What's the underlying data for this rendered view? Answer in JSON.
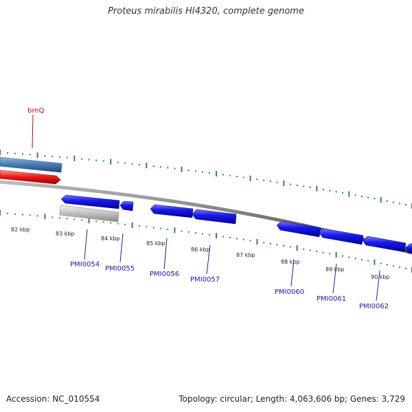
{
  "title": "Proteus mirabilis HI4320, complete genome",
  "footer": {
    "accession": "Accession: NC_010554",
    "summary": "Topology: circular; Length: 4,063,606 bp; Genes: 3,729"
  },
  "colors": {
    "forward_gene": "#4a7fb5",
    "rna_gene": "#e8161c",
    "reverse_gene": "#1414e6",
    "pseudo_gene": "#bdbdbd",
    "backbone": "#808080",
    "ticks": "#2e8b2e",
    "label_blue": "#1a1aa8",
    "label_red": "#cc0000"
  },
  "ticks": [
    {
      "label": "82 kbp"
    },
    {
      "label": "83 kbp"
    },
    {
      "label": "84 kbp"
    },
    {
      "label": "85 kbp"
    },
    {
      "label": "86 kbp"
    },
    {
      "label": "87 kbp"
    },
    {
      "label": "88 kbp"
    },
    {
      "label": "89 kbp"
    },
    {
      "label": "90 kbp"
    }
  ],
  "genes": {
    "forward": [
      {
        "name": ""
      }
    ],
    "rna": [
      {
        "name": "brnQ"
      }
    ],
    "pseudo": [
      {
        "name": ""
      }
    ],
    "reverse": [
      {
        "name": "PMI0054"
      },
      {
        "name": "PMI0055"
      },
      {
        "name": "PMI0056"
      },
      {
        "name": "PMI0057"
      },
      {
        "name": ""
      },
      {
        "name": "PMI0060"
      },
      {
        "name": "PMI0061"
      },
      {
        "name": "PMI0062"
      },
      {
        "name": ""
      }
    ]
  }
}
